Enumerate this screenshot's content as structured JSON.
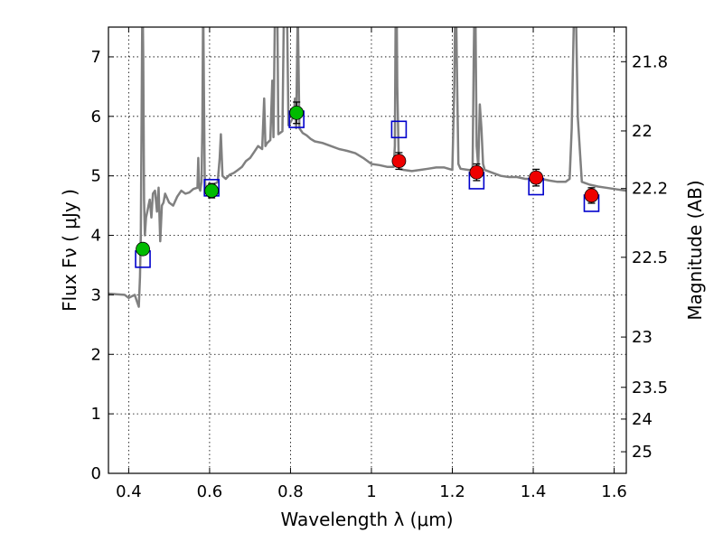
{
  "chart_data": {
    "type": "line",
    "xlabel": "Wavelength  λ (μm)",
    "ylabel_left": "Flux  Fν  ( μJy )",
    "ylabel_right": "Magnitude (AB)",
    "xlim": [
      0.35,
      1.63
    ],
    "ylim": [
      0,
      7.5
    ],
    "grid": true,
    "x_ticks": [
      {
        "v": 0.4,
        "label": "0.4"
      },
      {
        "v": 0.6,
        "label": "0.6"
      },
      {
        "v": 0.8,
        "label": "0.8"
      },
      {
        "v": 1.0,
        "label": "1"
      },
      {
        "v": 1.2,
        "label": "1.2"
      },
      {
        "v": 1.4,
        "label": "1.4"
      },
      {
        "v": 1.6,
        "label": "1.6"
      }
    ],
    "y_ticks": [
      {
        "v": 0,
        "label": "0"
      },
      {
        "v": 1,
        "label": "1"
      },
      {
        "v": 2,
        "label": "2"
      },
      {
        "v": 3,
        "label": "3"
      },
      {
        "v": 4,
        "label": "4"
      },
      {
        "v": 5,
        "label": "5"
      },
      {
        "v": 6,
        "label": "6"
      },
      {
        "v": 7,
        "label": "7"
      }
    ],
    "mag_ticks": [
      {
        "mag": 21.8,
        "label": "21.8"
      },
      {
        "mag": 22.0,
        "label": "22"
      },
      {
        "mag": 22.2,
        "label": "22.2"
      },
      {
        "mag": 22.5,
        "label": "22.5"
      },
      {
        "mag": 23.0,
        "label": "23"
      },
      {
        "mag": 23.5,
        "label": "23.5"
      },
      {
        "mag": 24.0,
        "label": "24"
      },
      {
        "mag": 25.0,
        "label": "25"
      }
    ],
    "colors": {
      "spectrum": "#808080",
      "model": "#0000cc",
      "optical": "#00bb00",
      "nir": "#ee0000"
    },
    "spectrum": {
      "x": [
        0.35,
        0.39,
        0.4,
        0.415,
        0.42,
        0.425,
        0.428,
        0.43,
        0.432,
        0.434,
        0.436,
        0.438,
        0.44,
        0.443,
        0.446,
        0.449,
        0.452,
        0.456,
        0.46,
        0.465,
        0.47,
        0.474,
        0.478,
        0.482,
        0.486,
        0.49,
        0.5,
        0.51,
        0.52,
        0.53,
        0.54,
        0.55,
        0.56,
        0.57,
        0.572,
        0.574,
        0.577,
        0.58,
        0.582,
        0.584,
        0.586,
        0.588,
        0.59,
        0.6,
        0.61,
        0.62,
        0.625,
        0.628,
        0.632,
        0.64,
        0.65,
        0.66,
        0.67,
        0.68,
        0.69,
        0.7,
        0.71,
        0.72,
        0.73,
        0.735,
        0.738,
        0.742,
        0.75,
        0.755,
        0.758,
        0.762,
        0.766,
        0.77,
        0.78,
        0.785,
        0.788,
        0.791,
        0.795,
        0.8,
        0.808,
        0.811,
        0.814,
        0.818,
        0.822,
        0.83,
        0.84,
        0.85,
        0.86,
        0.88,
        0.9,
        0.92,
        0.94,
        0.96,
        0.98,
        1.0,
        1.02,
        1.04,
        1.055,
        1.058,
        1.061,
        1.064,
        1.068,
        1.08,
        1.1,
        1.12,
        1.14,
        1.16,
        1.18,
        1.2,
        1.205,
        1.208,
        1.211,
        1.215,
        1.22,
        1.24,
        1.25,
        1.253,
        1.256,
        1.26,
        1.264,
        1.268,
        1.272,
        1.276,
        1.28,
        1.3,
        1.32,
        1.34,
        1.36,
        1.38,
        1.4,
        1.42,
        1.44,
        1.46,
        1.48,
        1.49,
        1.495,
        1.5,
        1.505,
        1.51,
        1.52,
        1.54,
        1.56,
        1.58,
        1.6,
        1.63
      ],
      "y": [
        3.02,
        3.0,
        2.95,
        3.0,
        2.9,
        2.8,
        3.3,
        4.0,
        6.0,
        8.2,
        7.0,
        4.6,
        4.0,
        4.3,
        4.4,
        4.5,
        4.6,
        4.3,
        4.7,
        4.75,
        4.4,
        4.8,
        3.9,
        4.5,
        4.55,
        4.7,
        4.55,
        4.5,
        4.65,
        4.75,
        4.7,
        4.72,
        4.78,
        4.8,
        5.3,
        4.8,
        4.75,
        4.9,
        5.8,
        8.0,
        6.5,
        5.0,
        4.8,
        4.8,
        4.85,
        4.9,
        5.3,
        5.7,
        5.0,
        4.95,
        5.02,
        5.05,
        5.1,
        5.15,
        5.25,
        5.3,
        5.4,
        5.5,
        5.45,
        6.3,
        5.5,
        5.55,
        5.6,
        6.6,
        5.65,
        8.0,
        9.0,
        5.7,
        5.75,
        8.5,
        9.5,
        8.0,
        5.85,
        5.9,
        6.0,
        6.3,
        5.8,
        7.8,
        5.8,
        5.72,
        5.68,
        5.62,
        5.58,
        5.55,
        5.5,
        5.45,
        5.42,
        5.38,
        5.3,
        5.2,
        5.18,
        5.15,
        5.15,
        5.5,
        9.0,
        6.5,
        5.12,
        5.1,
        5.08,
        5.1,
        5.12,
        5.14,
        5.14,
        5.1,
        6.5,
        8.5,
        7.0,
        5.2,
        5.12,
        5.1,
        5.1,
        7.0,
        8.5,
        5.5,
        5.15,
        6.2,
        5.8,
        5.2,
        5.1,
        5.05,
        5.0,
        4.98,
        4.98,
        4.95,
        4.95,
        4.95,
        4.92,
        4.9,
        4.9,
        4.95,
        5.8,
        7.5,
        8.0,
        6.0,
        4.9,
        4.85,
        4.82,
        4.8,
        4.78,
        4.75
      ]
    },
    "model_points": {
      "x": [
        0.435,
        0.605,
        0.815,
        1.068,
        1.26,
        1.407,
        1.544
      ],
      "y": [
        3.6,
        4.8,
        5.95,
        5.78,
        4.92,
        4.82,
        4.54
      ]
    },
    "optical_points": {
      "x": [
        0.435,
        0.605,
        0.815
      ],
      "y": [
        3.77,
        4.75,
        6.06
      ],
      "err": [
        0.07,
        0.12,
        0.18
      ]
    },
    "nir_points": {
      "x": [
        1.068,
        1.26,
        1.407,
        1.544
      ],
      "y": [
        5.25,
        5.06,
        4.97,
        4.67
      ],
      "err": [
        0.14,
        0.14,
        0.14,
        0.13
      ]
    }
  }
}
